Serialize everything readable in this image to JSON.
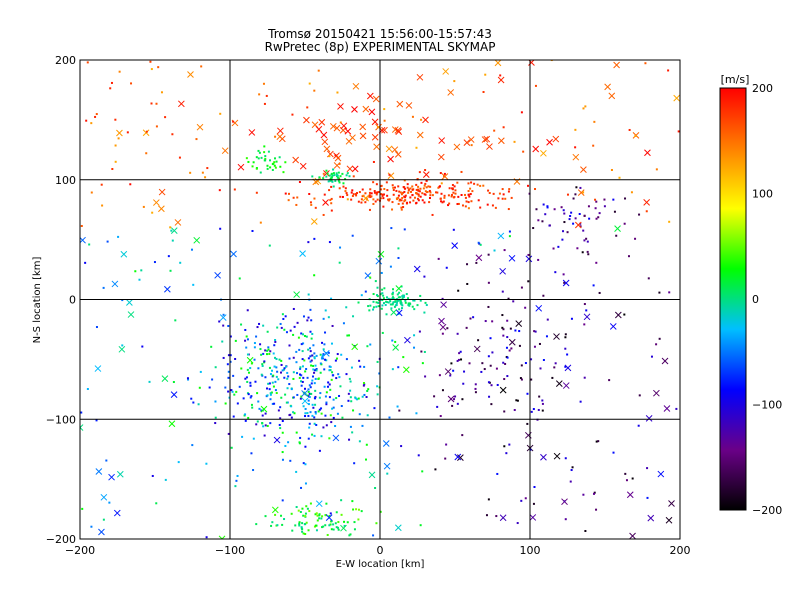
{
  "chart_data": {
    "type": "scatter",
    "title": "Tromsø 20150421 15:56:00-15:57:43",
    "subtitle": "RwPretec (8p) EXPERIMENTAL SKYMAP",
    "xlabel": "E-W location [km]",
    "ylabel": "N-S location [km]",
    "xlim": [
      -200,
      200
    ],
    "ylim": [
      -200,
      200
    ],
    "x_ticks": [
      -200,
      -100,
      0,
      100,
      200
    ],
    "y_ticks": [
      -200,
      -100,
      0,
      100,
      200
    ],
    "grid": true,
    "markers": [
      "cross",
      "dot"
    ],
    "colorbar": {
      "label": "[m/s]",
      "range": [
        -200,
        200
      ],
      "ticks": [
        -200,
        -100,
        0,
        100,
        200
      ],
      "colormap": [
        "#000000",
        "#6a0088",
        "#0000ff",
        "#00bfff",
        "#00ff00",
        "#ffff00",
        "#ff8000",
        "#ff0000"
      ]
    },
    "clusters": [
      {
        "name": "north-red-band",
        "center": [
          20,
          88
        ],
        "spread": [
          55,
          10
        ],
        "value_range": [
          150,
          200
        ],
        "marker": "dot",
        "count": 260
      },
      {
        "name": "north-red-crosses",
        "center": [
          -10,
          135
        ],
        "spread": [
          60,
          25
        ],
        "value_range": [
          150,
          200
        ],
        "marker": "cross",
        "count": 60
      },
      {
        "name": "north-green-patch",
        "center": [
          -30,
          103
        ],
        "spread": [
          10,
          5
        ],
        "value_range": [
          -10,
          20
        ],
        "marker": "dot",
        "count": 40
      },
      {
        "name": "north-green-patch-2",
        "center": [
          -75,
          115
        ],
        "spread": [
          10,
          8
        ],
        "value_range": [
          0,
          40
        ],
        "marker": "dot",
        "count": 35
      },
      {
        "name": "center-green-cluster",
        "center": [
          10,
          -2
        ],
        "spread": [
          15,
          7
        ],
        "value_range": [
          -15,
          15
        ],
        "marker": "dot",
        "count": 100
      },
      {
        "name": "southwest-mixed",
        "center": [
          -55,
          -70
        ],
        "spread": [
          45,
          45
        ],
        "value_range": [
          -120,
          40
        ],
        "marker": "dot",
        "count": 420
      },
      {
        "name": "south-green-strip",
        "center": [
          -40,
          -185
        ],
        "spread": [
          30,
          12
        ],
        "value_range": [
          -10,
          60
        ],
        "marker": "dot",
        "count": 90
      },
      {
        "name": "east-dark-region",
        "center": [
          80,
          -50
        ],
        "spread": [
          50,
          60
        ],
        "value_range": [
          -200,
          -80
        ],
        "marker": "dot",
        "count": 110
      },
      {
        "name": "east-blue-north",
        "center": [
          130,
          70
        ],
        "spread": [
          30,
          25
        ],
        "value_range": [
          -200,
          -80
        ],
        "marker": "dot",
        "count": 60
      },
      {
        "name": "scattered-crosses",
        "center": [
          0,
          0
        ],
        "spread": [
          140,
          140
        ],
        "value_range": [
          -200,
          200
        ],
        "marker": "cross",
        "count": 140
      },
      {
        "name": "scattered-dots",
        "center": [
          0,
          0
        ],
        "spread": [
          150,
          150
        ],
        "value_range": [
          -200,
          200
        ],
        "marker": "dot",
        "count": 320
      }
    ]
  }
}
